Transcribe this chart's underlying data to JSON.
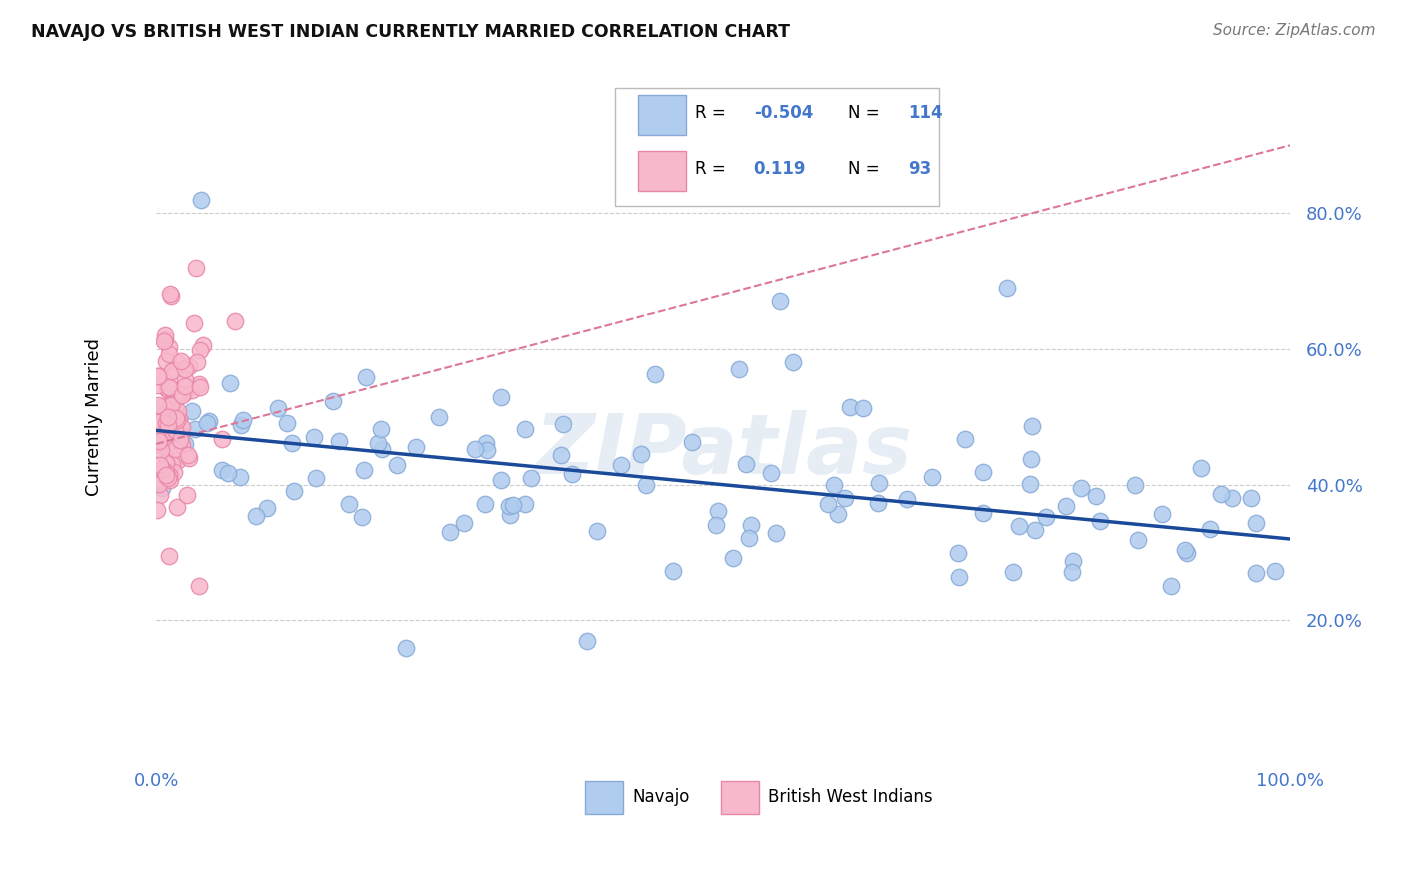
{
  "title": "NAVAJO VS BRITISH WEST INDIAN CURRENTLY MARRIED CORRELATION CHART",
  "source": "Source: ZipAtlas.com",
  "ylabel": "Currently Married",
  "navajo_R": "-0.504",
  "navajo_N": "114",
  "bwi_R": "0.119",
  "bwi_N": "93",
  "navajo_color": "#b0ccee",
  "navajo_edge_color": "#88aad8",
  "bwi_color": "#f8b8cc",
  "bwi_edge_color": "#e888a8",
  "navajo_line_color": "#1a4a99",
  "bwi_line_color": "#dd7799",
  "grid_color": "#cccccc",
  "watermark": "ZIPatlas",
  "accent_color": "#4477cc",
  "title_color": "#111111",
  "source_color": "#777777",
  "ytick_positions": [
    0.2,
    0.4,
    0.6,
    0.8
  ],
  "xtick_positions": [
    0.0,
    1.0
  ],
  "xlim": [
    0.0,
    1.0
  ],
  "ylim": [
    0.0,
    1.0
  ],
  "nav_line_x0": 0.0,
  "nav_line_y0": 0.48,
  "nav_line_x1": 1.0,
  "nav_line_y1": 0.32,
  "bwi_line_x0": 0.0,
  "bwi_line_y0": 0.46,
  "bwi_line_x1": 1.0,
  "bwi_line_y1": 0.9
}
